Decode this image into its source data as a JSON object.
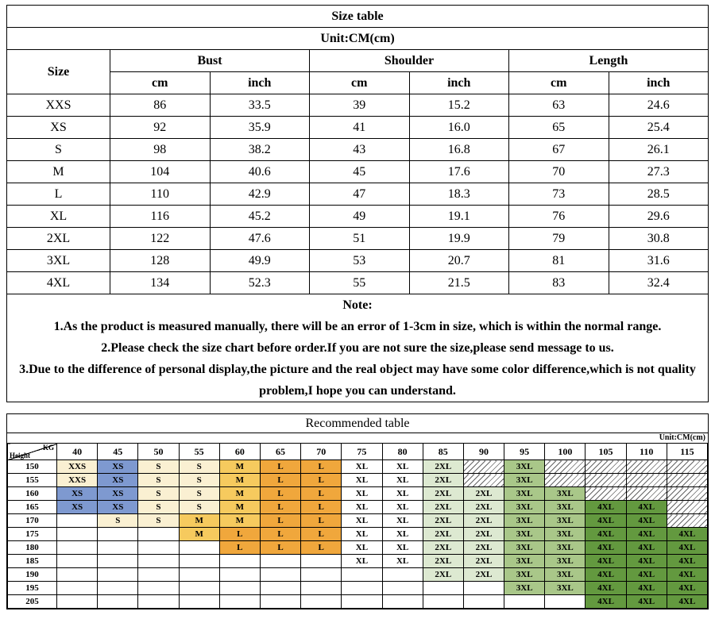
{
  "size_table": {
    "title": "Size table",
    "unit": "Unit:CM(cm)",
    "header": {
      "size": "Size",
      "groups": [
        {
          "label": "Bust"
        },
        {
          "label": "Shoulder"
        },
        {
          "label": "Length"
        }
      ],
      "sub": [
        "cm",
        "inch",
        "cm",
        "inch",
        "cm",
        "inch"
      ]
    },
    "rows": [
      {
        "size": "XXS",
        "values": [
          "86",
          "33.5",
          "39",
          "15.2",
          "63",
          "24.6"
        ]
      },
      {
        "size": "XS",
        "values": [
          "92",
          "35.9",
          "41",
          "16.0",
          "65",
          "25.4"
        ]
      },
      {
        "size": "S",
        "values": [
          "98",
          "38.2",
          "43",
          "16.8",
          "67",
          "26.1"
        ]
      },
      {
        "size": "M",
        "values": [
          "104",
          "40.6",
          "45",
          "17.6",
          "70",
          "27.3"
        ]
      },
      {
        "size": "L",
        "values": [
          "110",
          "42.9",
          "47",
          "18.3",
          "73",
          "28.5"
        ]
      },
      {
        "size": "XL",
        "values": [
          "116",
          "45.2",
          "49",
          "19.1",
          "76",
          "29.6"
        ]
      },
      {
        "size": "2XL",
        "values": [
          "122",
          "47.6",
          "51",
          "19.9",
          "79",
          "30.8"
        ]
      },
      {
        "size": "3XL",
        "values": [
          "128",
          "49.9",
          "53",
          "20.7",
          "81",
          "31.6"
        ]
      },
      {
        "size": "4XL",
        "values": [
          "134",
          "52.3",
          "55",
          "21.5",
          "83",
          "32.4"
        ]
      }
    ],
    "notes": [
      "Note:",
      "1.As the product is measured manually, there will be an error of 1-3cm in size, which is within the normal range.",
      "2.Please check  the size chart before order.If you are not sure the size,please send message to us.",
      "3.Due to the difference of personal display,the picture and the real object may have some color difference,which is not quality problem,I hope you can understand."
    ]
  },
  "recommended_table": {
    "title": "Recommended table",
    "unit": "Unit:CM(cm)",
    "corner": {
      "top_right": "KG",
      "bottom_left": "Height"
    },
    "weights": [
      "40",
      "45",
      "50",
      "55",
      "60",
      "65",
      "70",
      "75",
      "80",
      "85",
      "90",
      "95",
      "100",
      "105",
      "110",
      "115"
    ],
    "hatch_symbol": "#",
    "size_colors": {
      "XXS": "#faf0d2",
      "XS": "#7e99d0",
      "S": "#faf0d2",
      "M": "#f6ca5e",
      "L": "#f0a73c",
      "XL": "#ffffff",
      "2XL": "#dde9d1",
      "3XL": "#a9c789",
      "4XL": "#63993f"
    },
    "rows": [
      {
        "height": "150",
        "cells": [
          "XXS",
          "XS",
          "S",
          "S",
          "M",
          "L",
          "L",
          "XL",
          "XL",
          "2XL",
          "#",
          "3XL",
          "#",
          "#",
          "#",
          "#"
        ]
      },
      {
        "height": "155",
        "cells": [
          "XXS",
          "XS",
          "S",
          "S",
          "M",
          "L",
          "L",
          "XL",
          "XL",
          "2XL",
          "#",
          "3XL",
          "#",
          "#",
          "#",
          "#"
        ]
      },
      {
        "height": "160",
        "cells": [
          "XS",
          "XS",
          "S",
          "S",
          "M",
          "L",
          "L",
          "XL",
          "XL",
          "2XL",
          "2XL",
          "3XL",
          "3XL",
          "#",
          "#",
          "#"
        ]
      },
      {
        "height": "165",
        "cells": [
          "XS",
          "XS",
          "S",
          "S",
          "M",
          "L",
          "L",
          "XL",
          "XL",
          "2XL",
          "2XL",
          "3XL",
          "3XL",
          "4XL",
          "4XL",
          "#"
        ]
      },
      {
        "height": "170",
        "cells": [
          "",
          "S",
          "S",
          "M",
          "M",
          "L",
          "L",
          "XL",
          "XL",
          "2XL",
          "2XL",
          "3XL",
          "3XL",
          "4XL",
          "4XL",
          "#"
        ]
      },
      {
        "height": "175",
        "cells": [
          "",
          "",
          "",
          "M",
          "L",
          "L",
          "L",
          "XL",
          "XL",
          "2XL",
          "2XL",
          "3XL",
          "3XL",
          "4XL",
          "4XL",
          "4XL"
        ]
      },
      {
        "height": "180",
        "cells": [
          "",
          "",
          "",
          "",
          "L",
          "L",
          "L",
          "XL",
          "XL",
          "2XL",
          "2XL",
          "3XL",
          "3XL",
          "4XL",
          "4XL",
          "4XL"
        ]
      },
      {
        "height": "185",
        "cells": [
          "",
          "",
          "",
          "",
          "",
          "",
          "",
          "XL",
          "XL",
          "2XL",
          "2XL",
          "3XL",
          "3XL",
          "4XL",
          "4XL",
          "4XL"
        ]
      },
      {
        "height": "190",
        "cells": [
          "",
          "",
          "",
          "",
          "",
          "",
          "",
          "",
          "",
          "2XL",
          "2XL",
          "3XL",
          "3XL",
          "4XL",
          "4XL",
          "4XL"
        ]
      },
      {
        "height": "195",
        "cells": [
          "",
          "",
          "",
          "",
          "",
          "",
          "",
          "",
          "",
          "",
          "",
          "3XL",
          "3XL",
          "4XL",
          "4XL",
          "4XL"
        ]
      },
      {
        "height": "205",
        "cells": [
          "",
          "",
          "",
          "",
          "",
          "",
          "",
          "",
          "",
          "",
          "",
          "",
          "",
          "4XL",
          "4XL",
          "4XL"
        ]
      }
    ]
  }
}
